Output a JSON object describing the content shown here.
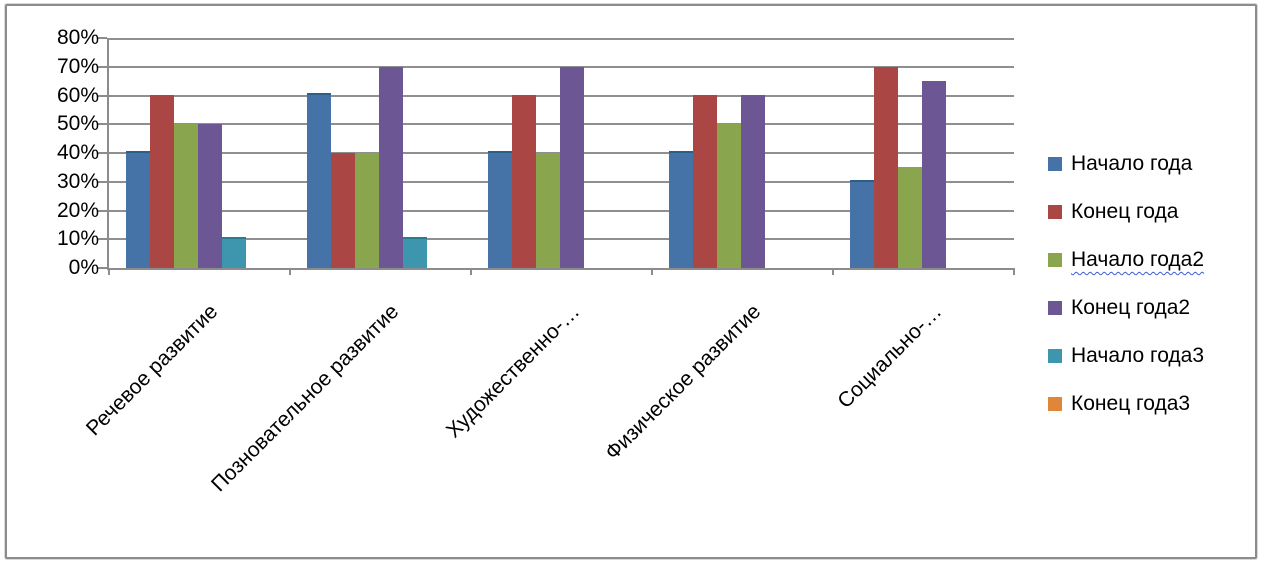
{
  "chart_data": {
    "type": "bar",
    "title": "",
    "xlabel": "",
    "ylabel": "",
    "categories": [
      "Речевое развитие",
      "Позновательное развитие",
      "Художественно-…",
      "Физическое развитие",
      "Социально-…"
    ],
    "series": [
      {
        "name": "Начало года",
        "color": "#4572A7",
        "edge": "#2C5E88",
        "values": [
          40,
          60,
          40,
          40,
          30
        ]
      },
      {
        "name": "Конец года",
        "color": "#AA4643",
        "edge": "",
        "values": [
          60,
          40,
          60,
          60,
          70
        ]
      },
      {
        "name": "Начало года2",
        "color": "#89A54E",
        "edge": "",
        "values": [
          50,
          40,
          40,
          50,
          35
        ],
        "spellcheck_underline": true
      },
      {
        "name": "Конец года2",
        "color": "#6C5794",
        "edge": "",
        "values": [
          50,
          70,
          70,
          60,
          65
        ]
      },
      {
        "name": "Начало года3",
        "color": "#3D96AE",
        "edge": "#2E7A92",
        "values": [
          10,
          10,
          0,
          0,
          0
        ]
      },
      {
        "name": "Конец года3",
        "color": "#E08638",
        "edge": "",
        "values": [
          0,
          0,
          0,
          0,
          0
        ]
      }
    ],
    "ylim": [
      0,
      80
    ],
    "ytick_step": 10,
    "ytick_labels": [
      "0%",
      "10%",
      "20%",
      "30%",
      "40%",
      "50%",
      "60%",
      "70%",
      "80%"
    ],
    "grid": true,
    "legend_position": "right",
    "axis_color": "#8C8C8C",
    "gridline_color": "#8F8F8F",
    "text_color": "#000000"
  }
}
